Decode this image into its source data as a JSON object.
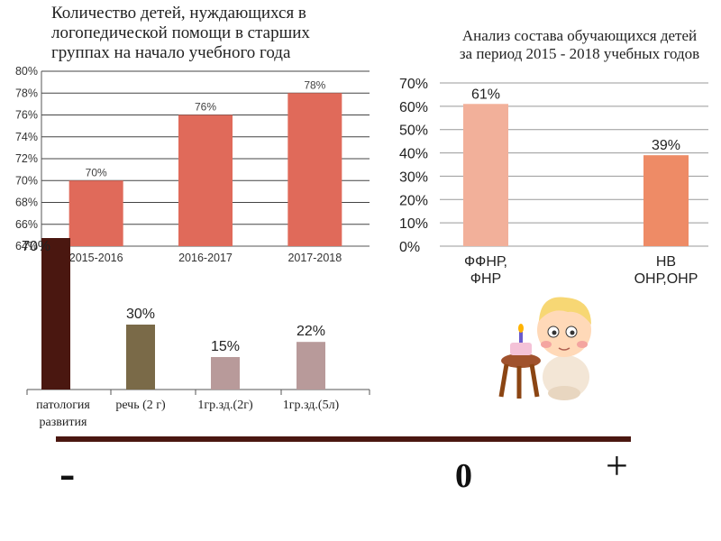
{
  "left_title": "Количество детей, нуждающихся в логопедической помощи в старших группах на начало учебного года",
  "right_title": "Анализ состава обучающихся детей за период 2015 - 2018 учебных годов",
  "signs": {
    "minus": "-",
    "zero": "0",
    "plus": "+"
  },
  "colors": {
    "bar_red": "#e06a5a",
    "bar_peach": "#f2b09a",
    "bar_orange": "#ee8b66",
    "bar_darkbrown": "#4a1710",
    "bar_olive": "#7a6a48",
    "bar_mauve": "#b89a9a",
    "scale_line": "#4a1710"
  },
  "chart_data": [
    {
      "type": "bar",
      "title": "Количество детей, нуждающихся в логопедической помощи в старших группах на начало учебного года",
      "categories": [
        "2015-2016",
        "2016-2017",
        "2017-2018"
      ],
      "values": [
        70,
        76,
        78
      ],
      "data_labels": [
        "70%",
        "76%",
        "78%"
      ],
      "ylim": [
        64,
        80
      ],
      "yticks": [
        "64%",
        "66%",
        "68%",
        "70%",
        "72%",
        "74%",
        "76%",
        "78%",
        "80%"
      ],
      "grid": true,
      "color": "#e06a5a"
    },
    {
      "type": "bar",
      "title": "Анализ состава обучающихся детей за период 2015 - 2018 учебных годов",
      "categories": [
        "ФФНР, ФНР",
        "НВ ОНР,ОНР"
      ],
      "category_lines": [
        [
          "ФФНР,",
          "ФНР"
        ],
        [
          "НВ",
          "ОНР,ОНР"
        ]
      ],
      "values": [
        61,
        39
      ],
      "data_labels": [
        "61%",
        "39%"
      ],
      "ylim": [
        0,
        70
      ],
      "yticks": [
        "0%",
        "10%",
        "20%",
        "30%",
        "40%",
        "50%",
        "60%",
        "70%"
      ],
      "grid": true,
      "colors": [
        "#f2b09a",
        "#ee8b66"
      ]
    },
    {
      "type": "bar",
      "categories": [
        "патология развития",
        "речь (2 г)",
        "1гр.зд.(2г)",
        "1гр.зд.(5л)"
      ],
      "category_lines": [
        [
          "патология",
          "развития"
        ],
        [
          "речь (2 г)"
        ],
        [
          "1гр.зд.(2г)"
        ],
        [
          "1гр.зд.(5л)"
        ]
      ],
      "values": [
        70,
        30,
        15,
        22
      ],
      "data_labels": [
        "70%",
        "30%",
        "15%",
        "22%"
      ],
      "ylim": [
        0,
        70
      ],
      "grid": false,
      "colors": [
        "#4a1710",
        "#7a6a48",
        "#b89a9a",
        "#b89a9a"
      ]
    }
  ]
}
